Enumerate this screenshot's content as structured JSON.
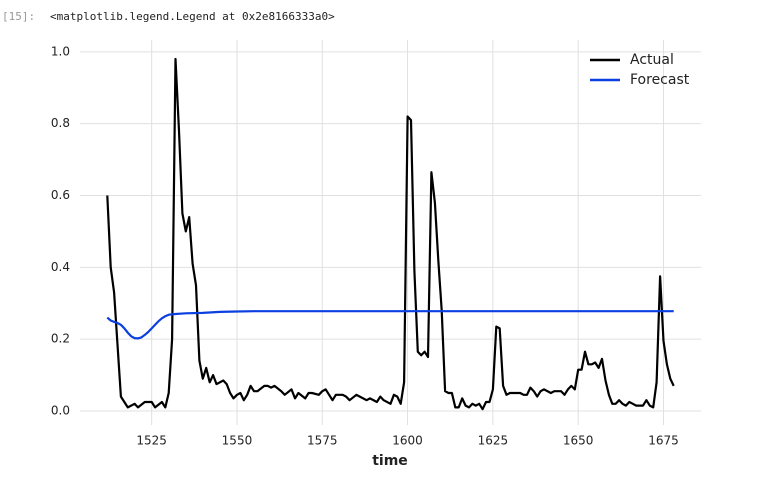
{
  "cell": {
    "prompt": "[15]:",
    "output": "<matplotlib.legend.Legend at 0x2e8166333a0>"
  },
  "chart_data": {
    "type": "line",
    "xlabel": "time",
    "grid": true,
    "legend": "upper right",
    "xlim": [
      1504,
      1686
    ],
    "ylim": [
      -0.039,
      1.033
    ],
    "xticks": [
      1525,
      1550,
      1575,
      1600,
      1625,
      1650,
      1675
    ],
    "yticks": [
      {
        "value": 0,
        "label": "0.0"
      },
      0.2,
      0.4,
      0.6,
      0.8,
      {
        "value": 1,
        "label": "1.0"
      }
    ],
    "series": [
      {
        "name": "Actual",
        "color": "#000000",
        "x": [
          1512,
          1513,
          1514,
          1516,
          1518,
          1520,
          1521,
          1523,
          1525,
          1526,
          1528,
          1529,
          1530,
          1531,
          1532,
          1533,
          1534,
          1535,
          1536,
          1537,
          1538,
          1539,
          1540,
          1541,
          1542,
          1543,
          1544,
          1545,
          1546,
          1547,
          1548,
          1549,
          1550,
          1551,
          1552,
          1553,
          1554,
          1555,
          1556,
          1558,
          1559,
          1560,
          1561,
          1563,
          1564,
          1566,
          1567,
          1568,
          1570,
          1571,
          1572,
          1574,
          1575,
          1576,
          1578,
          1579,
          1581,
          1582,
          1583,
          1585,
          1586,
          1588,
          1589,
          1591,
          1592,
          1593,
          1595,
          1596,
          1597,
          1598,
          1599,
          1600,
          1601,
          1602,
          1603,
          1604,
          1605,
          1606,
          1607,
          1608,
          1609,
          1610,
          1611,
          1612,
          1613,
          1614,
          1615,
          1616,
          1617,
          1618,
          1619,
          1620,
          1621,
          1622,
          1623,
          1624,
          1625,
          1626,
          1627,
          1628,
          1629,
          1630,
          1631,
          1633,
          1634,
          1635,
          1636,
          1637,
          1638,
          1639,
          1640,
          1642,
          1643,
          1644,
          1645,
          1646,
          1647,
          1648,
          1649,
          1650,
          1651,
          1652,
          1653,
          1654,
          1655,
          1656,
          1657,
          1658,
          1659,
          1660,
          1661,
          1662,
          1663,
          1664,
          1665,
          1666,
          1667,
          1669,
          1670,
          1671,
          1672,
          1673,
          1674,
          1675,
          1676,
          1677,
          1678
        ],
        "values": [
          0.6,
          0.4,
          0.33,
          0.04,
          0.01,
          0.02,
          0.01,
          0.025,
          0.025,
          0.01,
          0.025,
          0.01,
          0.05,
          0.2,
          0.98,
          0.78,
          0.55,
          0.5,
          0.54,
          0.41,
          0.35,
          0.14,
          0.09,
          0.12,
          0.08,
          0.1,
          0.075,
          0.08,
          0.085,
          0.075,
          0.05,
          0.035,
          0.045,
          0.05,
          0.03,
          0.045,
          0.07,
          0.055,
          0.055,
          0.07,
          0.07,
          0.065,
          0.07,
          0.055,
          0.045,
          0.06,
          0.035,
          0.05,
          0.035,
          0.05,
          0.05,
          0.045,
          0.055,
          0.06,
          0.03,
          0.045,
          0.045,
          0.04,
          0.03,
          0.045,
          0.04,
          0.03,
          0.035,
          0.025,
          0.04,
          0.03,
          0.02,
          0.045,
          0.04,
          0.02,
          0.08,
          0.82,
          0.81,
          0.39,
          0.165,
          0.155,
          0.165,
          0.15,
          0.665,
          0.58,
          0.42,
          0.28,
          0.055,
          0.05,
          0.05,
          0.01,
          0.01,
          0.035,
          0.015,
          0.01,
          0.02,
          0.015,
          0.02,
          0.005,
          0.025,
          0.025,
          0.06,
          0.235,
          0.23,
          0.07,
          0.045,
          0.05,
          0.05,
          0.05,
          0.045,
          0.045,
          0.065,
          0.055,
          0.04,
          0.055,
          0.06,
          0.05,
          0.055,
          0.055,
          0.055,
          0.045,
          0.06,
          0.07,
          0.06,
          0.115,
          0.115,
          0.165,
          0.13,
          0.13,
          0.135,
          0.12,
          0.145,
          0.085,
          0.045,
          0.02,
          0.02,
          0.03,
          0.02,
          0.015,
          0.025,
          0.02,
          0.015,
          0.015,
          0.03,
          0.015,
          0.01,
          0.08,
          0.375,
          0.195,
          0.13,
          0.09,
          0.07
        ]
      },
      {
        "name": "Forecast",
        "color": "#0b3fe0",
        "x": [
          1512,
          1513,
          1514,
          1515,
          1516,
          1517,
          1518,
          1519,
          1520,
          1521,
          1522,
          1523,
          1524,
          1525,
          1526,
          1527,
          1528,
          1529,
          1530,
          1532,
          1535,
          1540,
          1545,
          1550,
          1555,
          1560,
          1678
        ],
        "values": [
          0.26,
          0.252,
          0.248,
          0.245,
          0.24,
          0.23,
          0.218,
          0.208,
          0.203,
          0.202,
          0.205,
          0.212,
          0.22,
          0.23,
          0.24,
          0.25,
          0.258,
          0.264,
          0.268,
          0.27,
          0.272,
          0.273,
          0.276,
          0.277,
          0.278,
          0.278,
          0.278
        ]
      }
    ]
  }
}
